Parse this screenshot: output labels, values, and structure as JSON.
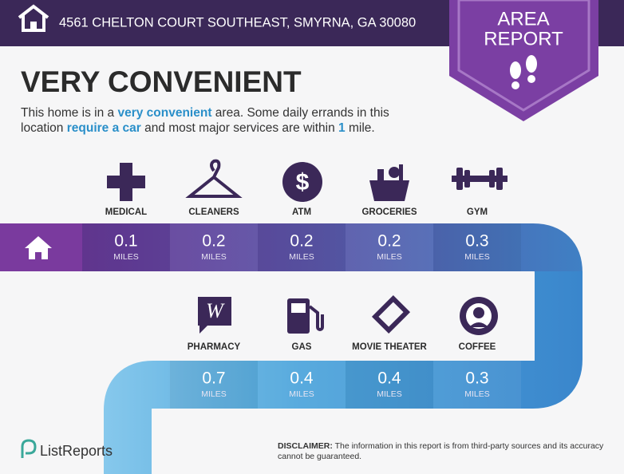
{
  "header": {
    "address": "4561 CHELTON COURT SOUTHEAST, SMYRNA, GA 30080"
  },
  "badge": {
    "lines": [
      "AREA",
      "REPORT"
    ]
  },
  "headline": "VERY CONVENIENT",
  "description": [
    "This home is in a ",
    "very convenient",
    " area. Some daily errands in this",
    "location ",
    "require a car",
    " and most major services are within ",
    "1",
    " mile."
  ],
  "unit": "MILES",
  "rows": [
    [
      {
        "label": "MEDICAL",
        "distance": 0.1
      },
      {
        "label": "CLEANERS",
        "distance": 0.2
      },
      {
        "label": "ATM",
        "distance": 0.2
      },
      {
        "label": "GROCERIES",
        "distance": 0.2
      },
      {
        "label": "GYM",
        "distance": 0.3
      }
    ],
    [
      {
        "label": "PHARMACY",
        "distance": 0.7
      },
      {
        "label": "GAS",
        "distance": 0.4
      },
      {
        "label": "MOVIE THEATER",
        "distance": 0.4
      },
      {
        "label": "COFFEE",
        "distance": 0.3
      }
    ]
  ],
  "footer": {
    "logo": "ListReports",
    "disclaimer_label": "DISCLAIMER:",
    "disclaimer_text": "The information in this report is from third-party sources and its accuracy cannot be guaranteed."
  }
}
